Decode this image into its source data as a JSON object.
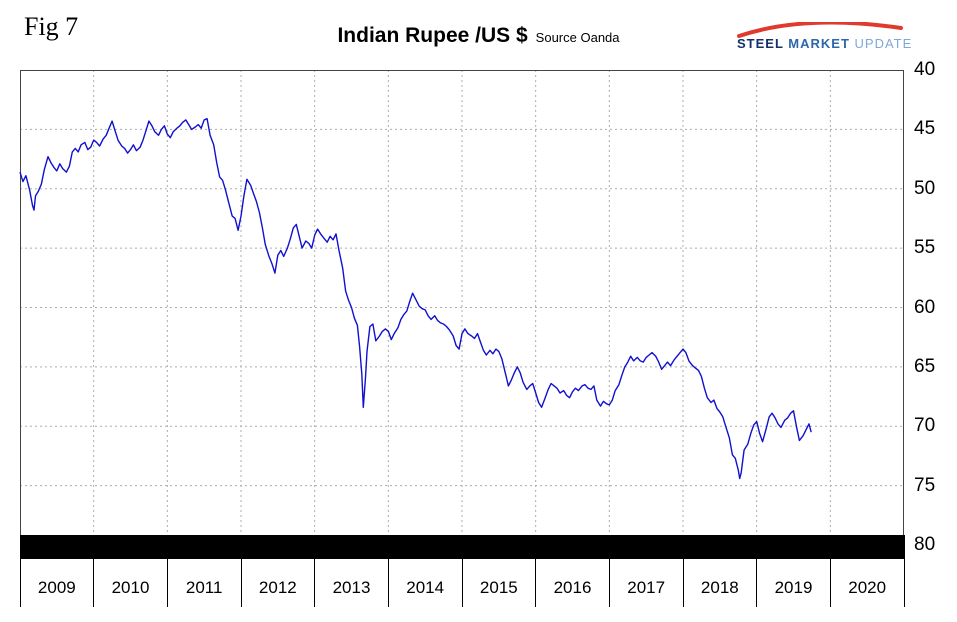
{
  "fig_label": "Fig 7",
  "title": "Indian Rupee /US $",
  "subtitle": "Source Oanda",
  "logo": {
    "steel": "STEEL",
    "market": "MARKET",
    "update": "UPDATE",
    "accent_red": "#e03a2f",
    "dark_blue": "#13306b",
    "mid_blue": "#2c67ae",
    "light_blue": "#7fa8d6"
  },
  "chart_data": {
    "type": "line",
    "title": "Indian Rupee /US $",
    "source": "Oanda",
    "grid": true,
    "legend": "none",
    "y_axis_side": "right",
    "y_axis_inverted_weaker_down": true,
    "y_range": [
      40,
      80
    ],
    "y_ticks": [
      40,
      45,
      50,
      55,
      60,
      65,
      70,
      75,
      80
    ],
    "x_range": [
      2009,
      2021
    ],
    "x_tick_labels": [
      "2009",
      "2010",
      "2011",
      "2012",
      "2013",
      "2014",
      "2015",
      "2016",
      "2017",
      "2018",
      "2019",
      "2020"
    ],
    "series": [
      {
        "name": "Indian Rupee per US Dollar",
        "color": "#1010cf",
        "points": [
          [
            2009.0,
            48.6
          ],
          [
            2009.04,
            49.4
          ],
          [
            2009.08,
            48.9
          ],
          [
            2009.13,
            50.1
          ],
          [
            2009.17,
            51.4
          ],
          [
            2009.19,
            51.8
          ],
          [
            2009.21,
            50.6
          ],
          [
            2009.25,
            50.2
          ],
          [
            2009.29,
            49.6
          ],
          [
            2009.33,
            48.4
          ],
          [
            2009.38,
            47.3
          ],
          [
            2009.42,
            47.8
          ],
          [
            2009.46,
            48.2
          ],
          [
            2009.5,
            48.5
          ],
          [
            2009.54,
            47.9
          ],
          [
            2009.58,
            48.3
          ],
          [
            2009.63,
            48.6
          ],
          [
            2009.67,
            48.1
          ],
          [
            2009.71,
            46.9
          ],
          [
            2009.75,
            46.6
          ],
          [
            2009.79,
            46.9
          ],
          [
            2009.83,
            46.3
          ],
          [
            2009.88,
            46.1
          ],
          [
            2009.92,
            46.7
          ],
          [
            2009.96,
            46.5
          ],
          [
            2010.0,
            45.9
          ],
          [
            2010.04,
            46.1
          ],
          [
            2010.08,
            46.4
          ],
          [
            2010.13,
            45.8
          ],
          [
            2010.17,
            45.5
          ],
          [
            2010.21,
            44.9
          ],
          [
            2010.25,
            44.3
          ],
          [
            2010.29,
            45.1
          ],
          [
            2010.33,
            45.9
          ],
          [
            2010.38,
            46.4
          ],
          [
            2010.42,
            46.6
          ],
          [
            2010.46,
            47.0
          ],
          [
            2010.5,
            46.7
          ],
          [
            2010.54,
            46.3
          ],
          [
            2010.58,
            46.8
          ],
          [
            2010.63,
            46.5
          ],
          [
            2010.67,
            45.9
          ],
          [
            2010.71,
            45.1
          ],
          [
            2010.75,
            44.3
          ],
          [
            2010.79,
            44.7
          ],
          [
            2010.83,
            45.2
          ],
          [
            2010.88,
            45.5
          ],
          [
            2010.92,
            45.0
          ],
          [
            2010.96,
            44.7
          ],
          [
            2011.0,
            45.4
          ],
          [
            2011.04,
            45.7
          ],
          [
            2011.08,
            45.2
          ],
          [
            2011.13,
            44.9
          ],
          [
            2011.17,
            44.7
          ],
          [
            2011.21,
            44.4
          ],
          [
            2011.25,
            44.2
          ],
          [
            2011.29,
            44.6
          ],
          [
            2011.33,
            45.0
          ],
          [
            2011.38,
            44.8
          ],
          [
            2011.42,
            44.6
          ],
          [
            2011.46,
            44.9
          ],
          [
            2011.5,
            44.2
          ],
          [
            2011.54,
            44.1
          ],
          [
            2011.58,
            45.5
          ],
          [
            2011.63,
            46.3
          ],
          [
            2011.67,
            47.8
          ],
          [
            2011.71,
            49.0
          ],
          [
            2011.75,
            49.3
          ],
          [
            2011.79,
            50.1
          ],
          [
            2011.83,
            51.1
          ],
          [
            2011.88,
            52.3
          ],
          [
            2011.92,
            52.5
          ],
          [
            2011.96,
            53.5
          ],
          [
            2012.0,
            52.3
          ],
          [
            2012.04,
            50.6
          ],
          [
            2012.08,
            49.2
          ],
          [
            2012.13,
            49.7
          ],
          [
            2012.17,
            50.4
          ],
          [
            2012.21,
            51.1
          ],
          [
            2012.25,
            52.0
          ],
          [
            2012.29,
            53.3
          ],
          [
            2012.33,
            54.7
          ],
          [
            2012.38,
            55.7
          ],
          [
            2012.42,
            56.3
          ],
          [
            2012.46,
            57.1
          ],
          [
            2012.5,
            55.6
          ],
          [
            2012.54,
            55.2
          ],
          [
            2012.58,
            55.7
          ],
          [
            2012.63,
            55.0
          ],
          [
            2012.67,
            54.2
          ],
          [
            2012.71,
            53.3
          ],
          [
            2012.75,
            53.0
          ],
          [
            2012.79,
            54.0
          ],
          [
            2012.83,
            55.0
          ],
          [
            2012.88,
            54.4
          ],
          [
            2012.92,
            54.6
          ],
          [
            2012.96,
            55.0
          ],
          [
            2013.0,
            53.9
          ],
          [
            2013.04,
            53.4
          ],
          [
            2013.08,
            53.8
          ],
          [
            2013.13,
            54.2
          ],
          [
            2013.17,
            54.5
          ],
          [
            2013.21,
            54.0
          ],
          [
            2013.25,
            54.3
          ],
          [
            2013.29,
            53.8
          ],
          [
            2013.33,
            55.2
          ],
          [
            2013.38,
            56.7
          ],
          [
            2013.42,
            58.6
          ],
          [
            2013.46,
            59.4
          ],
          [
            2013.5,
            60.0
          ],
          [
            2013.54,
            60.9
          ],
          [
            2013.58,
            61.5
          ],
          [
            2013.61,
            63.3
          ],
          [
            2013.64,
            65.6
          ],
          [
            2013.66,
            68.4
          ],
          [
            2013.69,
            65.9
          ],
          [
            2013.71,
            63.7
          ],
          [
            2013.75,
            61.6
          ],
          [
            2013.79,
            61.4
          ],
          [
            2013.83,
            62.8
          ],
          [
            2013.88,
            62.4
          ],
          [
            2013.92,
            62.0
          ],
          [
            2013.96,
            61.8
          ],
          [
            2014.0,
            62.0
          ],
          [
            2014.04,
            62.7
          ],
          [
            2014.08,
            62.2
          ],
          [
            2014.13,
            61.7
          ],
          [
            2014.17,
            61.0
          ],
          [
            2014.21,
            60.6
          ],
          [
            2014.25,
            60.3
          ],
          [
            2014.29,
            59.5
          ],
          [
            2014.33,
            58.8
          ],
          [
            2014.38,
            59.4
          ],
          [
            2014.42,
            59.9
          ],
          [
            2014.46,
            60.1
          ],
          [
            2014.5,
            60.2
          ],
          [
            2014.54,
            60.7
          ],
          [
            2014.58,
            61.0
          ],
          [
            2014.63,
            60.7
          ],
          [
            2014.67,
            61.1
          ],
          [
            2014.71,
            61.3
          ],
          [
            2014.75,
            61.4
          ],
          [
            2014.79,
            61.6
          ],
          [
            2014.83,
            61.9
          ],
          [
            2014.88,
            62.4
          ],
          [
            2014.92,
            63.2
          ],
          [
            2014.96,
            63.5
          ],
          [
            2015.0,
            62.2
          ],
          [
            2015.04,
            61.8
          ],
          [
            2015.08,
            62.2
          ],
          [
            2015.13,
            62.4
          ],
          [
            2015.17,
            62.6
          ],
          [
            2015.21,
            62.2
          ],
          [
            2015.25,
            62.9
          ],
          [
            2015.29,
            63.6
          ],
          [
            2015.33,
            64.0
          ],
          [
            2015.38,
            63.6
          ],
          [
            2015.42,
            63.9
          ],
          [
            2015.46,
            63.5
          ],
          [
            2015.5,
            63.7
          ],
          [
            2015.54,
            64.3
          ],
          [
            2015.58,
            65.3
          ],
          [
            2015.63,
            66.6
          ],
          [
            2015.67,
            66.1
          ],
          [
            2015.71,
            65.5
          ],
          [
            2015.75,
            65.0
          ],
          [
            2015.79,
            65.5
          ],
          [
            2015.83,
            66.3
          ],
          [
            2015.88,
            66.9
          ],
          [
            2015.92,
            66.6
          ],
          [
            2015.96,
            66.4
          ],
          [
            2016.0,
            67.2
          ],
          [
            2016.04,
            68.0
          ],
          [
            2016.08,
            68.4
          ],
          [
            2016.13,
            67.6
          ],
          [
            2016.17,
            66.9
          ],
          [
            2016.21,
            66.4
          ],
          [
            2016.25,
            66.6
          ],
          [
            2016.29,
            66.8
          ],
          [
            2016.33,
            67.2
          ],
          [
            2016.38,
            67.0
          ],
          [
            2016.42,
            67.4
          ],
          [
            2016.46,
            67.6
          ],
          [
            2016.5,
            67.1
          ],
          [
            2016.54,
            66.8
          ],
          [
            2016.58,
            67.0
          ],
          [
            2016.63,
            66.6
          ],
          [
            2016.67,
            66.5
          ],
          [
            2016.71,
            66.8
          ],
          [
            2016.75,
            66.9
          ],
          [
            2016.79,
            66.6
          ],
          [
            2016.83,
            67.8
          ],
          [
            2016.88,
            68.3
          ],
          [
            2016.92,
            67.9
          ],
          [
            2016.96,
            68.1
          ],
          [
            2017.0,
            68.2
          ],
          [
            2017.04,
            67.8
          ],
          [
            2017.08,
            67.0
          ],
          [
            2017.13,
            66.5
          ],
          [
            2017.17,
            65.7
          ],
          [
            2017.21,
            65.0
          ],
          [
            2017.25,
            64.6
          ],
          [
            2017.29,
            64.1
          ],
          [
            2017.33,
            64.5
          ],
          [
            2017.38,
            64.2
          ],
          [
            2017.42,
            64.5
          ],
          [
            2017.46,
            64.6
          ],
          [
            2017.5,
            64.2
          ],
          [
            2017.54,
            64.0
          ],
          [
            2017.58,
            63.8
          ],
          [
            2017.63,
            64.1
          ],
          [
            2017.67,
            64.6
          ],
          [
            2017.71,
            65.2
          ],
          [
            2017.75,
            64.9
          ],
          [
            2017.79,
            64.6
          ],
          [
            2017.83,
            64.9
          ],
          [
            2017.88,
            64.4
          ],
          [
            2017.92,
            64.1
          ],
          [
            2017.96,
            63.8
          ],
          [
            2018.0,
            63.5
          ],
          [
            2018.04,
            63.8
          ],
          [
            2018.08,
            64.5
          ],
          [
            2018.13,
            64.9
          ],
          [
            2018.17,
            65.1
          ],
          [
            2018.21,
            65.3
          ],
          [
            2018.25,
            65.8
          ],
          [
            2018.29,
            66.8
          ],
          [
            2018.33,
            67.6
          ],
          [
            2018.38,
            68.0
          ],
          [
            2018.42,
            67.8
          ],
          [
            2018.46,
            68.5
          ],
          [
            2018.5,
            68.8
          ],
          [
            2018.54,
            69.2
          ],
          [
            2018.58,
            70.0
          ],
          [
            2018.63,
            71.0
          ],
          [
            2018.67,
            72.4
          ],
          [
            2018.71,
            72.7
          ],
          [
            2018.75,
            73.7
          ],
          [
            2018.77,
            74.4
          ],
          [
            2018.79,
            73.9
          ],
          [
            2018.83,
            72.0
          ],
          [
            2018.88,
            71.5
          ],
          [
            2018.92,
            70.6
          ],
          [
            2018.96,
            69.9
          ],
          [
            2019.0,
            69.6
          ],
          [
            2019.04,
            70.6
          ],
          [
            2019.08,
            71.3
          ],
          [
            2019.13,
            70.2
          ],
          [
            2019.17,
            69.2
          ],
          [
            2019.21,
            68.9
          ],
          [
            2019.25,
            69.3
          ],
          [
            2019.29,
            69.8
          ],
          [
            2019.33,
            70.1
          ],
          [
            2019.38,
            69.5
          ],
          [
            2019.42,
            69.3
          ],
          [
            2019.46,
            68.9
          ],
          [
            2019.5,
            68.7
          ],
          [
            2019.54,
            70.0
          ],
          [
            2019.58,
            71.2
          ],
          [
            2019.63,
            70.8
          ],
          [
            2019.67,
            70.3
          ],
          [
            2019.71,
            69.8
          ],
          [
            2019.74,
            70.5
          ]
        ]
      }
    ]
  }
}
